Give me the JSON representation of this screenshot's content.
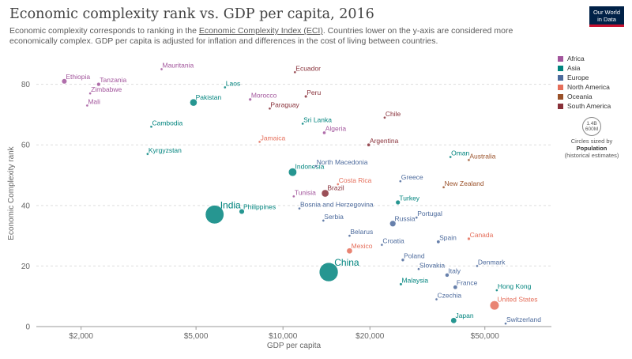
{
  "header": {
    "title": "Economic complexity rank vs. GDP per capita, 2016",
    "subtitle_pre": "Economic complexity corresponds to ranking in the ",
    "subtitle_link": "Economic Complexity Index (ECI)",
    "subtitle_post": ". Countries lower on the y-axis are considered more economically complex. GDP per capita is adjusted for inflation and differences in the cost of living between countries.",
    "logo_line1": "Our World",
    "logo_line2": "in Data"
  },
  "legend": {
    "items": [
      {
        "label": "Africa",
        "color": "#a2559c"
      },
      {
        "label": "Asia",
        "color": "#00847e"
      },
      {
        "label": "Europe",
        "color": "#4c6a9c"
      },
      {
        "label": "North America",
        "color": "#e56e5a"
      },
      {
        "label": "Oceania",
        "color": "#9a5129"
      },
      {
        "label": "South America",
        "color": "#883039"
      }
    ],
    "size_value_line1": "1.4B",
    "size_value_line2": "600M",
    "size_caption": "Circles sized by",
    "size_variable": "Population",
    "size_note": "(historical estimates)"
  },
  "chart_data": {
    "type": "scatter",
    "title": "Economic complexity rank vs. GDP per capita, 2016",
    "xlabel": "GDP per capita",
    "ylabel": "Economic Complexity rank",
    "x_scale": "log",
    "xlim": [
      1400,
      85000
    ],
    "ylim": [
      0,
      88
    ],
    "x_ticks": [
      2000,
      5000,
      10000,
      20000,
      50000
    ],
    "x_tick_labels": [
      "$2,000",
      "$5,000",
      "$10,000",
      "$20,000",
      "$50,000"
    ],
    "y_ticks": [
      0,
      20,
      40,
      60,
      80
    ],
    "y_tick_labels": [
      "0",
      "20",
      "40",
      "60",
      "80"
    ],
    "grid": "horizontal dashed",
    "legend_position": "right",
    "region_colors": {
      "Africa": "#a2559c",
      "Asia": "#00847e",
      "Europe": "#4c6a9c",
      "North America": "#e56e5a",
      "Oceania": "#9a5129",
      "South America": "#883039"
    },
    "points": [
      {
        "label": "Ethiopia",
        "x": 1750,
        "y": 81,
        "pop_m": 103,
        "region": "Africa"
      },
      {
        "label": "Tanzania",
        "x": 2300,
        "y": 80,
        "pop_m": 55,
        "region": "Africa"
      },
      {
        "label": "Zimbabwe",
        "x": 2150,
        "y": 77,
        "pop_m": 16,
        "region": "Africa"
      },
      {
        "label": "Mali",
        "x": 2100,
        "y": 73,
        "pop_m": 18,
        "region": "Africa"
      },
      {
        "label": "Mauritania",
        "x": 3800,
        "y": 85,
        "pop_m": 4,
        "region": "Africa"
      },
      {
        "label": "Morocco",
        "x": 7700,
        "y": 75,
        "pop_m": 35,
        "region": "Africa"
      },
      {
        "label": "Algeria",
        "x": 13900,
        "y": 64,
        "pop_m": 40,
        "region": "Africa"
      },
      {
        "label": "Tunisia",
        "x": 10900,
        "y": 43,
        "pop_m": 11,
        "region": "Africa"
      },
      {
        "label": "Pakistan",
        "x": 4900,
        "y": 74,
        "pop_m": 200,
        "region": "Asia"
      },
      {
        "label": "Laos",
        "x": 6300,
        "y": 79,
        "pop_m": 7,
        "region": "Asia"
      },
      {
        "label": "Cambodia",
        "x": 3500,
        "y": 66,
        "pop_m": 16,
        "region": "Asia"
      },
      {
        "label": "Sri Lanka",
        "x": 11700,
        "y": 67,
        "pop_m": 21,
        "region": "Asia"
      },
      {
        "label": "Kyrgyzstan",
        "x": 3400,
        "y": 57,
        "pop_m": 6,
        "region": "Asia"
      },
      {
        "label": "Indonesia",
        "x": 10800,
        "y": 51,
        "pop_m": 261,
        "region": "Asia"
      },
      {
        "label": "India",
        "x": 5800,
        "y": 37,
        "pop_m": 1324,
        "region": "Asia"
      },
      {
        "label": "Philippines",
        "x": 7200,
        "y": 38,
        "pop_m": 104,
        "region": "Asia"
      },
      {
        "label": "China",
        "x": 14400,
        "y": 18,
        "pop_m": 1379,
        "region": "Asia"
      },
      {
        "label": "Oman",
        "x": 38000,
        "y": 56,
        "pop_m": 4,
        "region": "Asia"
      },
      {
        "label": "Turkey",
        "x": 25000,
        "y": 41,
        "pop_m": 80,
        "region": "Asia"
      },
      {
        "label": "Malaysia",
        "x": 25600,
        "y": 14,
        "pop_m": 31,
        "region": "Asia"
      },
      {
        "label": "Japan",
        "x": 39000,
        "y": 2,
        "pop_m": 127,
        "region": "Asia"
      },
      {
        "label": "Hong Kong",
        "x": 55000,
        "y": 12,
        "pop_m": 7,
        "region": "Asia"
      },
      {
        "label": "North Macedonia",
        "x": 13000,
        "y": 53,
        "pop_m": 2,
        "region": "Europe"
      },
      {
        "label": "Greece",
        "x": 25500,
        "y": 48,
        "pop_m": 11,
        "region": "Europe"
      },
      {
        "label": "Bosnia and Herzegovina",
        "x": 11400,
        "y": 39,
        "pop_m": 3.5,
        "region": "Europe"
      },
      {
        "label": "Serbia",
        "x": 13800,
        "y": 35,
        "pop_m": 7,
        "region": "Europe"
      },
      {
        "label": "Russia",
        "x": 24000,
        "y": 34,
        "pop_m": 144,
        "region": "Europe"
      },
      {
        "label": "Portugal",
        "x": 29000,
        "y": 36,
        "pop_m": 10,
        "region": "Europe"
      },
      {
        "label": "Belarus",
        "x": 17000,
        "y": 30,
        "pop_m": 9.5,
        "region": "Europe"
      },
      {
        "label": "Croatia",
        "x": 22000,
        "y": 27,
        "pop_m": 4,
        "region": "Europe"
      },
      {
        "label": "Spain",
        "x": 34500,
        "y": 28,
        "pop_m": 46,
        "region": "Europe"
      },
      {
        "label": "Poland",
        "x": 26000,
        "y": 22,
        "pop_m": 38,
        "region": "Europe"
      },
      {
        "label": "Slovakia",
        "x": 29500,
        "y": 19,
        "pop_m": 5.4,
        "region": "Europe"
      },
      {
        "label": "Italy",
        "x": 37000,
        "y": 17,
        "pop_m": 60,
        "region": "Europe"
      },
      {
        "label": "Denmark",
        "x": 47000,
        "y": 20,
        "pop_m": 6,
        "region": "Europe"
      },
      {
        "label": "France",
        "x": 39500,
        "y": 13,
        "pop_m": 67,
        "region": "Europe"
      },
      {
        "label": "Czechia",
        "x": 34000,
        "y": 9,
        "pop_m": 10.6,
        "region": "Europe"
      },
      {
        "label": "Switzerland",
        "x": 59000,
        "y": 1,
        "pop_m": 8.4,
        "region": "Europe"
      },
      {
        "label": "Jamaica",
        "x": 8300,
        "y": 61,
        "pop_m": 3,
        "region": "North America"
      },
      {
        "label": "Costa Rica",
        "x": 15500,
        "y": 47,
        "pop_m": 5,
        "region": "North America"
      },
      {
        "label": "Mexico",
        "x": 17000,
        "y": 25,
        "pop_m": 127,
        "region": "North America"
      },
      {
        "label": "Canada",
        "x": 44000,
        "y": 29,
        "pop_m": 36,
        "region": "North America"
      },
      {
        "label": "United States",
        "x": 54000,
        "y": 7,
        "pop_m": 323,
        "region": "North America"
      },
      {
        "label": "Australia",
        "x": 44000,
        "y": 55,
        "pop_m": 24,
        "region": "Oceania"
      },
      {
        "label": "New Zealand",
        "x": 36000,
        "y": 46,
        "pop_m": 4.7,
        "region": "Oceania"
      },
      {
        "label": "Ecuador",
        "x": 11000,
        "y": 84,
        "pop_m": 16,
        "region": "South America"
      },
      {
        "label": "Peru",
        "x": 12000,
        "y": 76,
        "pop_m": 32,
        "region": "South America"
      },
      {
        "label": "Paraguay",
        "x": 9000,
        "y": 72,
        "pop_m": 7,
        "region": "South America"
      },
      {
        "label": "Chile",
        "x": 22500,
        "y": 69,
        "pop_m": 18,
        "region": "South America"
      },
      {
        "label": "Argentina",
        "x": 19800,
        "y": 60,
        "pop_m": 44,
        "region": "South America"
      },
      {
        "label": "Brazil",
        "x": 14000,
        "y": 44,
        "pop_m": 207,
        "region": "South America"
      }
    ]
  }
}
